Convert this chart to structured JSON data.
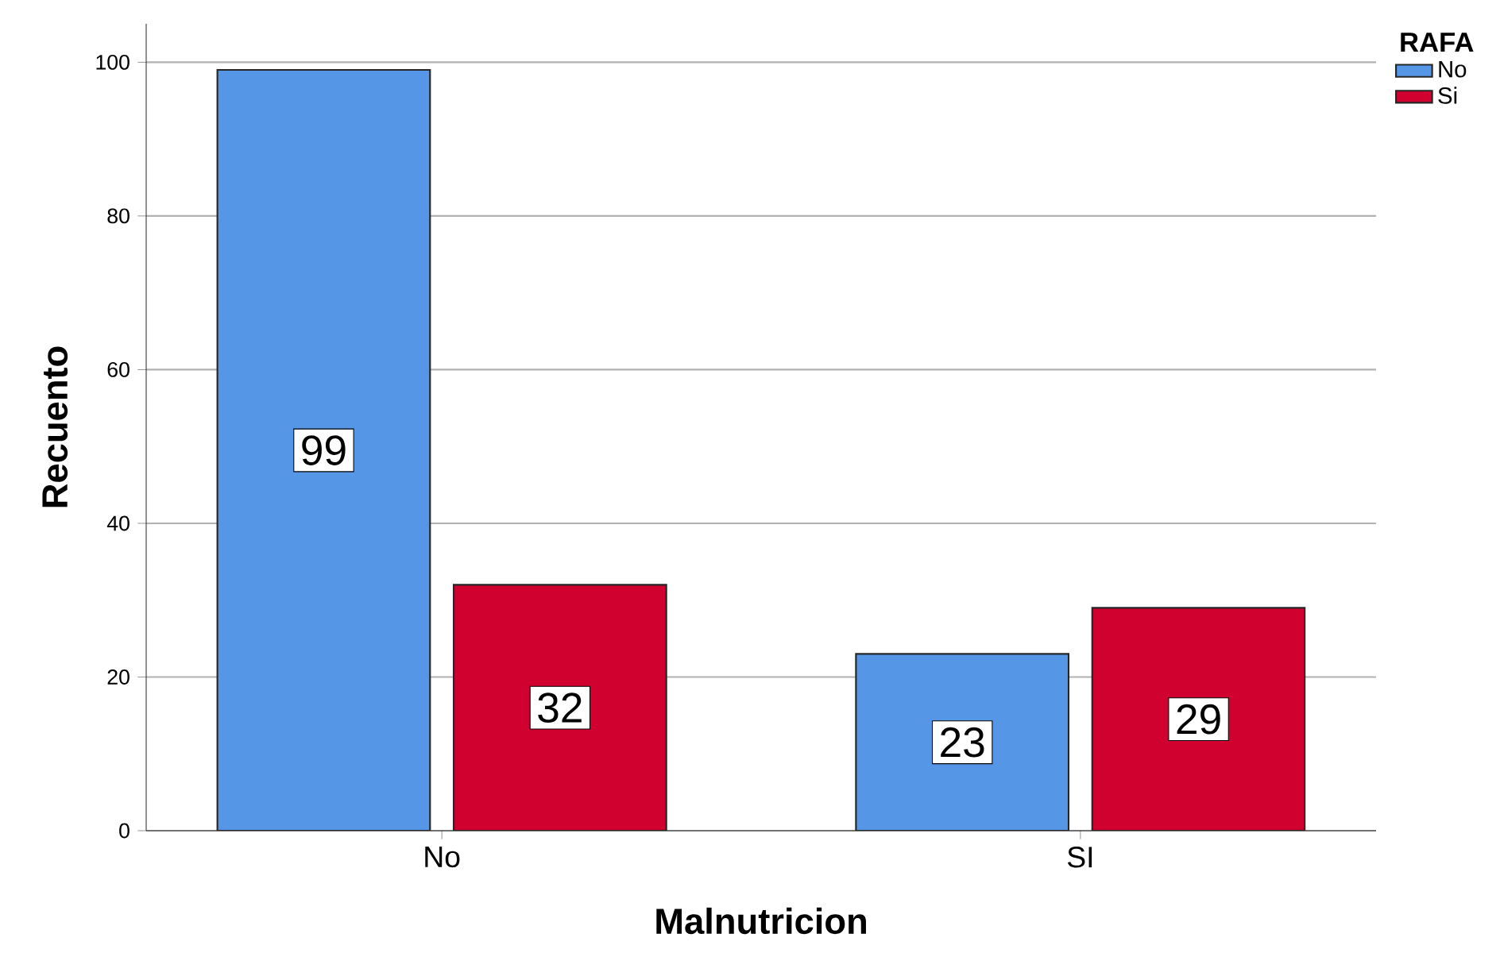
{
  "chart_data": {
    "type": "bar",
    "xlabel": "Malnutricion",
    "ylabel": "Recuento",
    "legend_title": "RAFA",
    "categories": [
      "No",
      "SI"
    ],
    "series": [
      {
        "name": "No",
        "color": "#5596e6",
        "values": [
          99,
          23
        ]
      },
      {
        "name": "Si",
        "color": "#d0002f",
        "values": [
          32,
          29
        ]
      }
    ],
    "ylim": [
      0,
      105
    ],
    "yticks": [
      0,
      20,
      40,
      60,
      80,
      100
    ],
    "grid": "y",
    "legend": "top right",
    "data_labels": true
  }
}
